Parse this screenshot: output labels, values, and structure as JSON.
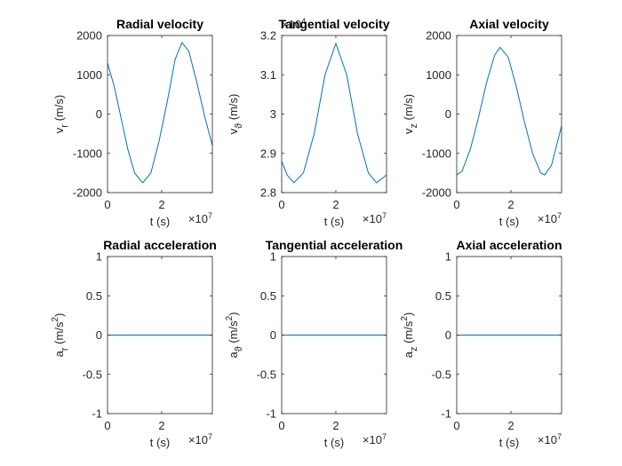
{
  "chart_data": [
    {
      "type": "line",
      "title": "Radial velocity",
      "ylabel": [
        {
          "text": "v"
        },
        {
          "text": "r",
          "sub": true
        },
        {
          "text": " (m/s)"
        }
      ],
      "xlabel": "t (s)",
      "x_multiplier": {
        "base": "×10",
        "exponent": "7"
      },
      "x": [
        0,
        0.25,
        0.5,
        0.75,
        1.0,
        1.3,
        1.6,
        1.9,
        2.2,
        2.5,
        2.75,
        3.0,
        3.3,
        3.6,
        3.87
      ],
      "y": [
        1300,
        700,
        -100,
        -900,
        -1500,
        -1750,
        -1500,
        -700,
        300,
        1400,
        1820,
        1600,
        800,
        -100,
        -800
      ],
      "color": "#0072bd",
      "xlim": [
        0,
        3.87
      ],
      "xticks": [
        0,
        2
      ],
      "ylim": [
        -2000,
        2000
      ],
      "yticks": [
        -2000,
        -1000,
        0,
        1000,
        2000
      ]
    },
    {
      "type": "line",
      "title": "Tangential velocity",
      "ylabel": [
        {
          "text": "v"
        },
        {
          "text": "ϑ",
          "sub": true
        },
        {
          "text": " (m/s)"
        }
      ],
      "xlabel": "t (s)",
      "x_multiplier": {
        "base": "×10",
        "exponent": "7"
      },
      "y_multiplier": {
        "base": "×10",
        "exponent": "4"
      },
      "x": [
        0,
        0.2,
        0.45,
        0.8,
        1.2,
        1.6,
        2.0,
        2.4,
        2.8,
        3.2,
        3.5,
        3.87
      ],
      "y": [
        2.88,
        2.845,
        2.825,
        2.85,
        2.95,
        3.1,
        3.18,
        3.1,
        2.95,
        2.85,
        2.825,
        2.845
      ],
      "color": "#0072bd",
      "xlim": [
        0,
        3.87
      ],
      "xticks": [
        0,
        2
      ],
      "ylim": [
        2.8,
        3.2
      ],
      "yticks": [
        2.8,
        2.9,
        3,
        3.1,
        3.2
      ]
    },
    {
      "type": "line",
      "title": "Axial velocity",
      "ylabel": [
        {
          "text": "v"
        },
        {
          "text": "z",
          "sub": true
        },
        {
          "text": " (m/s)"
        }
      ],
      "xlabel": "t (s)",
      "x_multiplier": {
        "base": "×10",
        "exponent": "7"
      },
      "x": [
        0,
        0.2,
        0.5,
        0.8,
        1.1,
        1.4,
        1.6,
        1.9,
        2.2,
        2.5,
        2.8,
        3.1,
        3.25,
        3.5,
        3.87
      ],
      "y": [
        -1550,
        -1450,
        -900,
        -100,
        800,
        1500,
        1700,
        1450,
        700,
        -200,
        -1000,
        -1500,
        -1550,
        -1300,
        -300
      ],
      "color": "#0072bd",
      "xlim": [
        0,
        3.87
      ],
      "xticks": [
        0,
        2
      ],
      "ylim": [
        -2000,
        2000
      ],
      "yticks": [
        -2000,
        -1000,
        0,
        1000,
        2000
      ]
    },
    {
      "type": "line",
      "title": "Radial acceleration",
      "ylabel": [
        {
          "text": "a"
        },
        {
          "text": "r",
          "sub": true
        },
        {
          "text": " (m/s"
        },
        {
          "text": "2",
          "sup": true
        },
        {
          "text": ")"
        }
      ],
      "xlabel": "t (s)",
      "x_multiplier": {
        "base": "×10",
        "exponent": "7"
      },
      "x": [
        0,
        3.87
      ],
      "y": [
        0,
        0
      ],
      "color": "#0072bd",
      "xlim": [
        0,
        3.87
      ],
      "xticks": [
        0,
        2
      ],
      "ylim": [
        -1,
        1
      ],
      "yticks": [
        -1,
        -0.5,
        0,
        0.5,
        1
      ]
    },
    {
      "type": "line",
      "title": "Tangential acceleration",
      "ylabel": [
        {
          "text": "a"
        },
        {
          "text": "ϑ",
          "sub": true
        },
        {
          "text": " (m/s"
        },
        {
          "text": "2",
          "sup": true
        },
        {
          "text": ")"
        }
      ],
      "xlabel": "t (s)",
      "x_multiplier": {
        "base": "×10",
        "exponent": "7"
      },
      "x": [
        0,
        3.87
      ],
      "y": [
        0,
        0
      ],
      "color": "#0072bd",
      "xlim": [
        0,
        3.87
      ],
      "xticks": [
        0,
        2
      ],
      "ylim": [
        -1,
        1
      ],
      "yticks": [
        -1,
        -0.5,
        0,
        0.5,
        1
      ]
    },
    {
      "type": "line",
      "title": "Axial acceleration",
      "ylabel": [
        {
          "text": "a"
        },
        {
          "text": "z",
          "sub": true
        },
        {
          "text": " (m/s"
        },
        {
          "text": "2",
          "sup": true
        },
        {
          "text": ")"
        }
      ],
      "xlabel": "t (s)",
      "x_multiplier": {
        "base": "×10",
        "exponent": "7"
      },
      "x": [
        0,
        3.87
      ],
      "y": [
        0,
        0
      ],
      "color": "#0072bd",
      "xlim": [
        0,
        3.87
      ],
      "xticks": [
        0,
        2
      ],
      "ylim": [
        -1,
        1
      ],
      "yticks": [
        -1,
        -0.5,
        0,
        0.5,
        1
      ]
    }
  ]
}
